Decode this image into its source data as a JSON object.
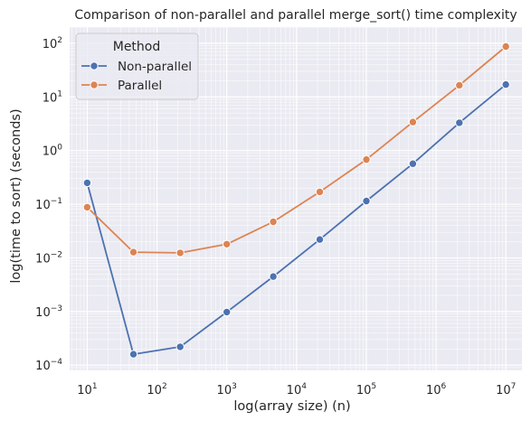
{
  "chart_data": {
    "type": "line",
    "title": "Comparison of non-parallel and parallel merge_sort() time complexity",
    "xlabel": "log(array size) (n)",
    "ylabel": "log(time to sort) (seconds)",
    "x_scale": "log",
    "y_scale": "log",
    "xlim": [
      5.6,
      17000000
    ],
    "ylim": [
      8e-05,
      200
    ],
    "grid": true,
    "x_ticks": [
      {
        "value": 10,
        "base": "10",
        "exp": "1"
      },
      {
        "value": 100,
        "base": "10",
        "exp": "2"
      },
      {
        "value": 1000,
        "base": "10",
        "exp": "3"
      },
      {
        "value": 10000,
        "base": "10",
        "exp": "4"
      },
      {
        "value": 100000,
        "base": "10",
        "exp": "5"
      },
      {
        "value": 1000000,
        "base": "10",
        "exp": "6"
      },
      {
        "value": 10000000,
        "base": "10",
        "exp": "7"
      }
    ],
    "y_ticks": [
      {
        "value": 0.0001,
        "base": "10",
        "exp": "−4"
      },
      {
        "value": 0.001,
        "base": "10",
        "exp": "−3"
      },
      {
        "value": 0.01,
        "base": "10",
        "exp": "−2"
      },
      {
        "value": 0.1,
        "base": "10",
        "exp": "−1"
      },
      {
        "value": 1,
        "base": "10",
        "exp": "0"
      },
      {
        "value": 10,
        "base": "10",
        "exp": "1"
      },
      {
        "value": 100,
        "base": "10",
        "exp": "2"
      }
    ],
    "x": [
      10,
      46,
      215,
      1000,
      4642,
      21544,
      100000,
      464159,
      2154435,
      10000000
    ],
    "series": [
      {
        "name": "Non-parallel",
        "color": "#4c72b0",
        "values": [
          0.25,
          0.00016,
          0.00022,
          0.00098,
          0.0045,
          0.022,
          0.115,
          0.57,
          3.3,
          17
        ]
      },
      {
        "name": "Parallel",
        "color": "#dd8452",
        "values": [
          0.088,
          0.0128,
          0.0124,
          0.018,
          0.047,
          0.17,
          0.68,
          3.4,
          16.5,
          87
        ]
      }
    ],
    "legend": {
      "title": "Method",
      "placement": "upper-left"
    }
  }
}
